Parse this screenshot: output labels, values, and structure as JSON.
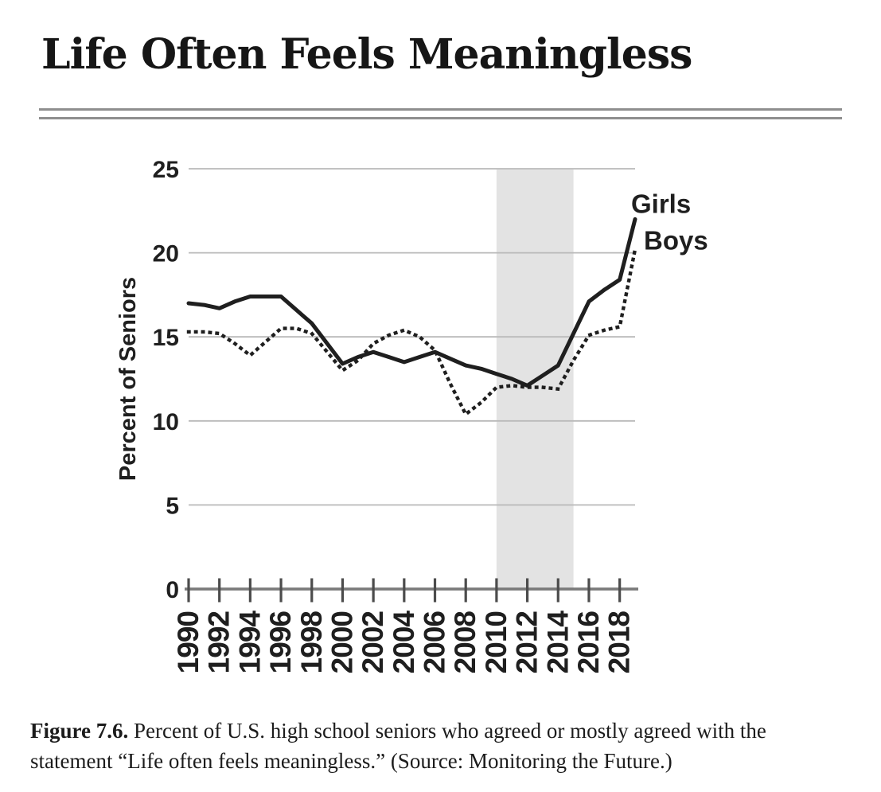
{
  "title": "Life Often Feels Meaningless",
  "caption": {
    "label": "Figure 7.6.",
    "line1": " Percent of U.S. high school seniors who agreed or mostly agreed with the",
    "line2": "statement “Life often feels meaningless.” (Source: Monitoring the Future.)"
  },
  "chart_data": {
    "type": "line",
    "title": "Life Often Feels Meaningless",
    "xlabel": "",
    "ylabel": "Percent of Seniors",
    "ylim": [
      0,
      25
    ],
    "yticks": [
      0,
      5,
      10,
      15,
      20,
      25
    ],
    "xlim": [
      1990,
      2019
    ],
    "xticks": [
      1990,
      1992,
      1994,
      1996,
      1998,
      2000,
      2002,
      2004,
      2006,
      2008,
      2010,
      2012,
      2014,
      2016,
      2018
    ],
    "grid": "horizontal",
    "legend_position": "end-of-line labels, top right",
    "shaded_region": {
      "x_start": 2010,
      "x_end": 2015
    },
    "x": [
      1990,
      1991,
      1992,
      1993,
      1994,
      1995,
      1996,
      1997,
      1998,
      1999,
      2000,
      2001,
      2002,
      2003,
      2004,
      2005,
      2006,
      2007,
      2008,
      2009,
      2010,
      2011,
      2012,
      2013,
      2014,
      2015,
      2016,
      2017,
      2018,
      2019
    ],
    "series": [
      {
        "name": "Girls",
        "style": "solid",
        "values": [
          17.0,
          16.9,
          16.7,
          17.1,
          17.4,
          17.4,
          17.4,
          16.6,
          15.8,
          14.6,
          13.4,
          13.8,
          14.1,
          13.8,
          13.5,
          13.8,
          14.1,
          13.7,
          13.3,
          13.1,
          12.8,
          12.5,
          12.1,
          12.7,
          13.3,
          15.2,
          17.1,
          17.8,
          18.4,
          22.0
        ]
      },
      {
        "name": "Boys",
        "style": "dotted",
        "values": [
          15.3,
          15.3,
          15.2,
          14.6,
          13.9,
          14.7,
          15.5,
          15.5,
          15.2,
          14.1,
          13.0,
          13.6,
          14.6,
          15.1,
          15.4,
          15.0,
          14.2,
          12.2,
          10.4,
          11.1,
          12.0,
          12.1,
          12.0,
          12.0,
          11.9,
          13.6,
          15.1,
          15.4,
          15.6,
          20.2
        ]
      }
    ],
    "colors": {
      "line": "#1f1f1f",
      "grid": "#b9b9b9",
      "axis": "#7a7a7a",
      "tick": "#4c4c4c",
      "shaded_band": "#e3e3e3",
      "text": "#1f1f1f"
    }
  }
}
